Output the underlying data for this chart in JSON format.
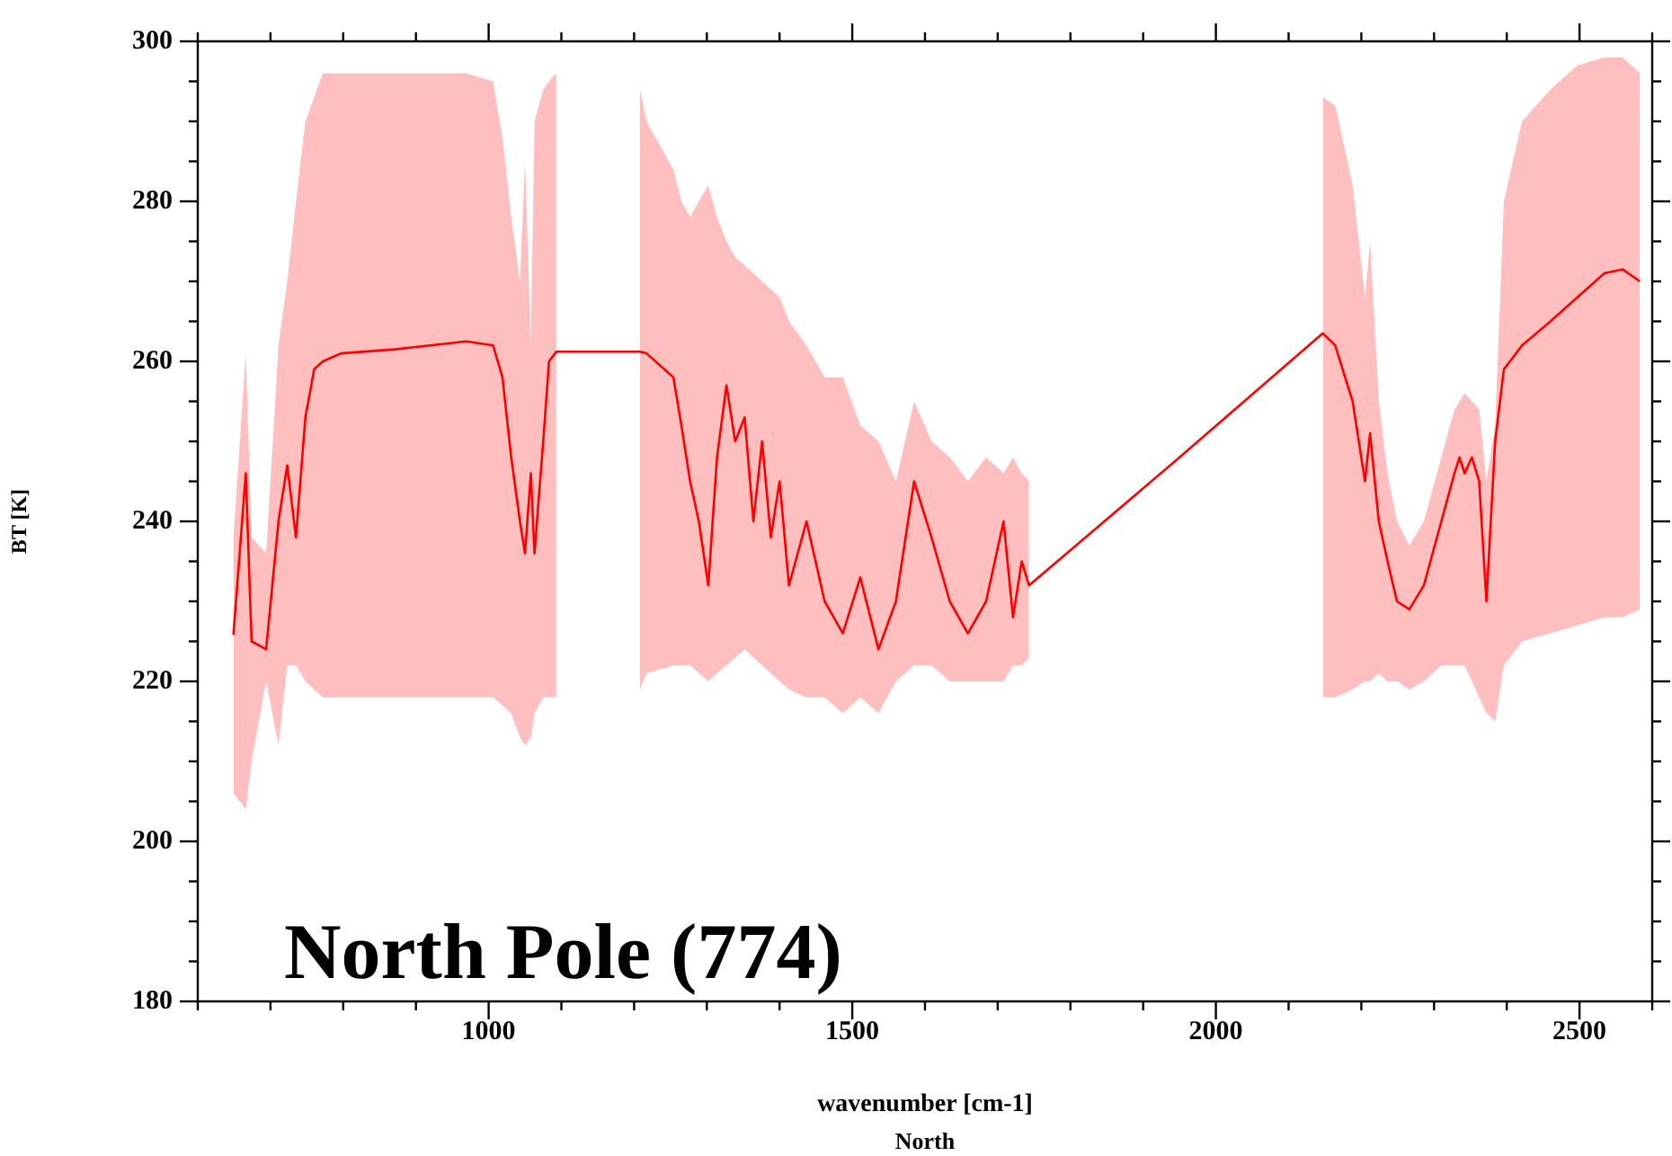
{
  "chart_data": {
    "type": "line",
    "xlabel": "wavenumber [cm-1]",
    "ylabel": "BT [K]",
    "annotations": [
      "North Pole (774)",
      "North"
    ],
    "xlim": [
      600,
      2600
    ],
    "xticks": [
      {
        "value": 600,
        "label": null
      },
      {
        "value": 700,
        "label": null
      },
      {
        "value": 800,
        "label": null
      },
      {
        "value": 900,
        "label": null
      },
      1000,
      {
        "value": 1100,
        "label": null
      },
      {
        "value": 1200,
        "label": null
      },
      {
        "value": 1300,
        "label": null
      },
      {
        "value": 1400,
        "label": null
      },
      1500,
      {
        "value": 1600,
        "label": null
      },
      {
        "value": 1700,
        "label": null
      },
      {
        "value": 1800,
        "label": null
      },
      {
        "value": 1900,
        "label": null
      },
      2000,
      {
        "value": 2100,
        "label": null
      },
      {
        "value": 2200,
        "label": null
      },
      {
        "value": 2300,
        "label": null
      },
      {
        "value": 2400,
        "label": null
      },
      2500,
      {
        "value": 2600,
        "label": null
      }
    ],
    "ylim": [
      180,
      300
    ],
    "yticks": [
      180,
      {
        "value": 185,
        "label": null
      },
      {
        "value": 190,
        "label": null
      },
      {
        "value": 195,
        "label": null
      },
      200,
      {
        "value": 205,
        "label": null
      },
      {
        "value": 210,
        "label": null
      },
      {
        "value": 215,
        "label": null
      },
      220,
      {
        "value": 225,
        "label": null
      },
      {
        "value": 230,
        "label": null
      },
      {
        "value": 235,
        "label": null
      },
      240,
      {
        "value": 245,
        "label": null
      },
      {
        "value": 250,
        "label": null
      },
      {
        "value": 255,
        "label": null
      },
      260,
      {
        "value": 265,
        "label": null
      },
      {
        "value": 270,
        "label": null
      },
      {
        "value": 275,
        "label": null
      },
      280,
      {
        "value": 285,
        "label": null
      },
      {
        "value": 290,
        "label": null
      },
      {
        "value": 295,
        "label": null
      },
      300
    ],
    "grid": false,
    "legend": false,
    "marker": "none",
    "line_style": "solid",
    "series": [
      {
        "color": "#ff0000",
        "x": [
          649,
          666,
          674,
          694,
          711,
          723,
          735,
          748,
          760,
          772,
          797,
          871,
          969,
          1006,
          1019,
          1031,
          1043,
          1050,
          1058,
          1063,
          1075,
          1083,
          1093,
          1150,
          1208,
          1217,
          1254,
          1265,
          1277,
          1289,
          1302,
          1314,
          1327,
          1339,
          1352,
          1364,
          1376,
          1388,
          1400,
          1413,
          1437,
          1462,
          1487,
          1511,
          1536,
          1560,
          1585,
          1609,
          1634,
          1659,
          1684,
          1708,
          1721,
          1733,
          1743,
          1950,
          2147,
          2164,
          2188,
          2205,
          2212,
          2224,
          2236,
          2249,
          2266,
          2286,
          2310,
          2328,
          2335,
          2342,
          2352,
          2362,
          2372,
          2384,
          2396,
          2421,
          2460,
          2497,
          2534,
          2559,
          2583
        ],
        "values": [
          225.8,
          246,
          225,
          224,
          240,
          247,
          238,
          253,
          259,
          260,
          261,
          261.5,
          262.5,
          262,
          258,
          248,
          240,
          236,
          246,
          236,
          250,
          260,
          261.2,
          261.2,
          261.2,
          261,
          258,
          252,
          245,
          240,
          232,
          248,
          257,
          250,
          253,
          240,
          250,
          238,
          245,
          232,
          240,
          230,
          226,
          233,
          224,
          230,
          245,
          238,
          230,
          226,
          230,
          240,
          228,
          235,
          232,
          248,
          263.5,
          262,
          255,
          245,
          251,
          240,
          235,
          230,
          229,
          232,
          240,
          246,
          248,
          246,
          248,
          245,
          230,
          250,
          259,
          262,
          265,
          268,
          271,
          271.5,
          270
        ],
        "upper": [
          238,
          261,
          238,
          236,
          262,
          270,
          280,
          290,
          293,
          296,
          296,
          296,
          296,
          295,
          288,
          278,
          270,
          285,
          262,
          290,
          294,
          295,
          296,
          null,
          294,
          290,
          284,
          280,
          278,
          280,
          282,
          278,
          275,
          273,
          272,
          271,
          270,
          269,
          268,
          265,
          262,
          258,
          258,
          252,
          250,
          245,
          255,
          250,
          248,
          245,
          248,
          246,
          248,
          246,
          245,
          null,
          293,
          292,
          282,
          268,
          275,
          255,
          246,
          240,
          237,
          240,
          248,
          254,
          255,
          256,
          255,
          254,
          245,
          252,
          280,
          290,
          294,
          297,
          298,
          298,
          296
        ],
        "lower": [
          206,
          204,
          210,
          220,
          212,
          222,
          222,
          220,
          219,
          218,
          218,
          218,
          218,
          218,
          217,
          216,
          213,
          212,
          213,
          216,
          218,
          218,
          218,
          null,
          219,
          221,
          222,
          222,
          222,
          221,
          220,
          221,
          222,
          223,
          224,
          223,
          222,
          221,
          220,
          219,
          218,
          218,
          216,
          218,
          216,
          220,
          222,
          222,
          220,
          220,
          220,
          220,
          222,
          222,
          223,
          null,
          218,
          218,
          219,
          220,
          220,
          221,
          220,
          220,
          219,
          220,
          222,
          222,
          222,
          222,
          220,
          218,
          216,
          215,
          222,
          225,
          226,
          227,
          228,
          228,
          229
        ]
      }
    ]
  }
}
